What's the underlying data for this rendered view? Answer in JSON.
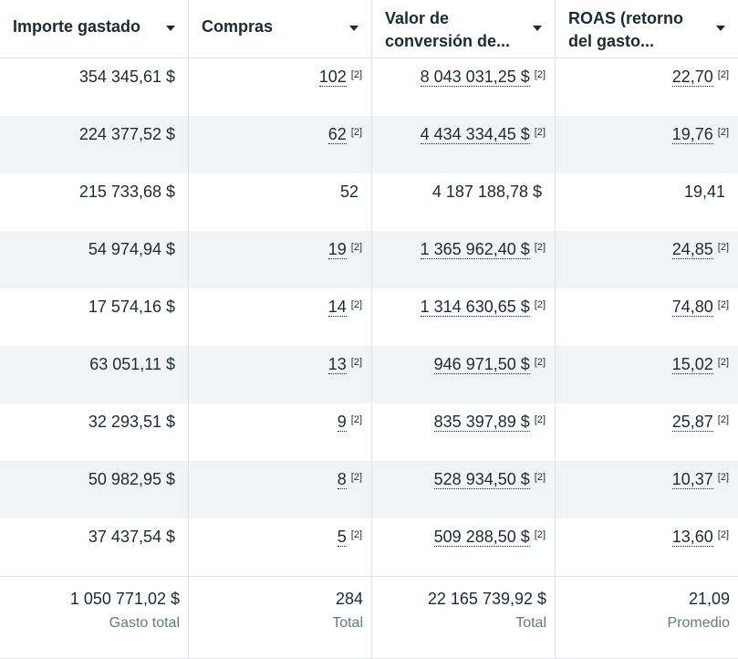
{
  "headers": [
    {
      "line1": "Importe gastado",
      "line2": ""
    },
    {
      "line1": "Compras",
      "line2": ""
    },
    {
      "line1": "Valor de",
      "line2": "conversión de..."
    },
    {
      "line1": "ROAS (retorno",
      "line2": "del gasto..."
    }
  ],
  "note_marker": "[2]",
  "rows": [
    {
      "spent": "354 345,61 $",
      "purchases": "102",
      "conv_value": "8 043 031,25 $",
      "roas": "22,70"
    },
    {
      "spent": "224 377,52 $",
      "purchases": "62",
      "conv_value": "4 434 334,45 $",
      "roas": "19,76"
    },
    {
      "spent": "215 733,68 $",
      "purchases": "52",
      "conv_value": "4 187 188,78 $",
      "roas": "19,41"
    },
    {
      "spent": "54 974,94 $",
      "purchases": "19",
      "conv_value": "1 365 962,40 $",
      "roas": "24,85"
    },
    {
      "spent": "17 574,16 $",
      "purchases": "14",
      "conv_value": "1 314 630,65 $",
      "roas": "74,80"
    },
    {
      "spent": "63 051,11 $",
      "purchases": "13",
      "conv_value": "946 971,50 $",
      "roas": "15,02"
    },
    {
      "spent": "32 293,51 $",
      "purchases": "9",
      "conv_value": "835 397,89 $",
      "roas": "25,87"
    },
    {
      "spent": "50 982,95 $",
      "purchases": "8",
      "conv_value": "528 934,50 $",
      "roas": "10,37"
    },
    {
      "spent": "37 437,54 $",
      "purchases": "5",
      "conv_value": "509 288,50 $",
      "roas": "13,60"
    }
  ],
  "footer": [
    {
      "value": "1 050 771,02 $",
      "label": "Gasto total"
    },
    {
      "value": "284",
      "label": "Total"
    },
    {
      "value": "22 165 739,92 $",
      "label": "Total"
    },
    {
      "value": "21,09",
      "label": "Promedio"
    }
  ],
  "colors": {
    "text": "#1c2b33",
    "muted": "#67788a",
    "stripe": "#f1f4f7",
    "border": "#dfe3e8"
  }
}
